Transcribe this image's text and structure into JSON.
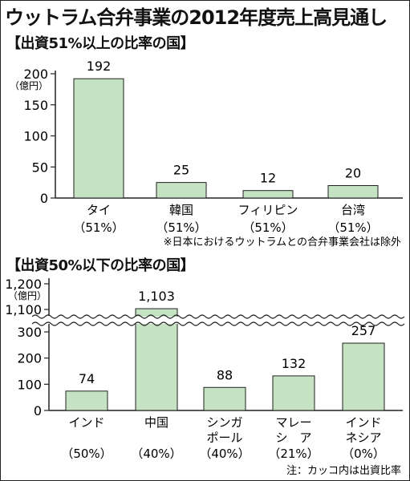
{
  "title": "ウットラム合弁事業の2012年度売上高見通し",
  "chart_data": [
    {
      "type": "bar",
      "title": "【出資51%以上の比率の国】",
      "unit_label": [
        "（",
        "億円）"
      ],
      "categories": [
        {
          "name": [
            "タイ"
          ],
          "share": "（51%）"
        },
        {
          "name": [
            "韓国"
          ],
          "share": "（51%）"
        },
        {
          "name": [
            "フィリピン"
          ],
          "share": "（51%）"
        },
        {
          "name": [
            "台湾"
          ],
          "share": "（51%）"
        }
      ],
      "values": [
        192,
        25,
        12,
        20
      ],
      "value_labels": [
        "192",
        "25",
        "12",
        "20"
      ],
      "yticks": [
        0,
        50,
        100,
        150,
        200
      ],
      "ylim": [
        0,
        200
      ],
      "bar_color": "#c5e3c2",
      "note": "※日本におけるウットラムとの合弁事業会社は除外"
    },
    {
      "type": "bar",
      "title": "【出資50%以下の比率の国】",
      "unit_label": [
        "（",
        "億円）"
      ],
      "axis_break": [
        350,
        1100
      ],
      "categories": [
        {
          "name": [
            "インド"
          ],
          "share": "（50%）"
        },
        {
          "name": [
            "中国"
          ],
          "share": "（40%）"
        },
        {
          "name": [
            "シンガ",
            "ポール"
          ],
          "share": "（40%）"
        },
        {
          "name": [
            "マレー",
            "シ　ア"
          ],
          "share": "（21%）"
        },
        {
          "name": [
            "インド",
            "ネシア"
          ],
          "share": "（0%）"
        }
      ],
      "values": [
        74,
        1103,
        88,
        132,
        257
      ],
      "value_labels": [
        "74",
        "1,103",
        "88",
        "132",
        "257"
      ],
      "yticks_lower": [
        0,
        100,
        200,
        300
      ],
      "yticks_upper": [
        "1,100",
        "1,200"
      ],
      "bar_color": "#c5e3c2",
      "note": "注：カッコ内は出資比率"
    }
  ]
}
